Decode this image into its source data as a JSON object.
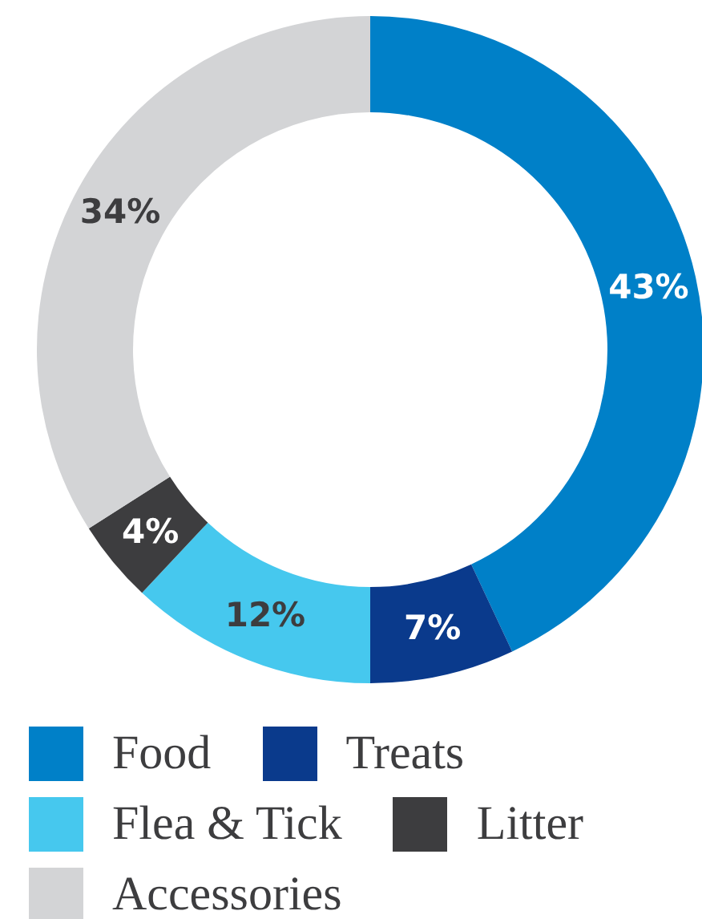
{
  "chart_data": {
    "type": "donut",
    "categories": [
      "Food",
      "Treats",
      "Flea & Tick",
      "Litter",
      "Accessories"
    ],
    "values": [
      43,
      7,
      12,
      4,
      34
    ],
    "colors": [
      "#0080c8",
      "#0a3a8c",
      "#46c8ee",
      "#3d3d3f",
      "#d3d4d6"
    ],
    "value_labels": [
      "43%",
      "7%",
      "12%",
      "4%",
      "34%"
    ],
    "legend": "bottom"
  }
}
